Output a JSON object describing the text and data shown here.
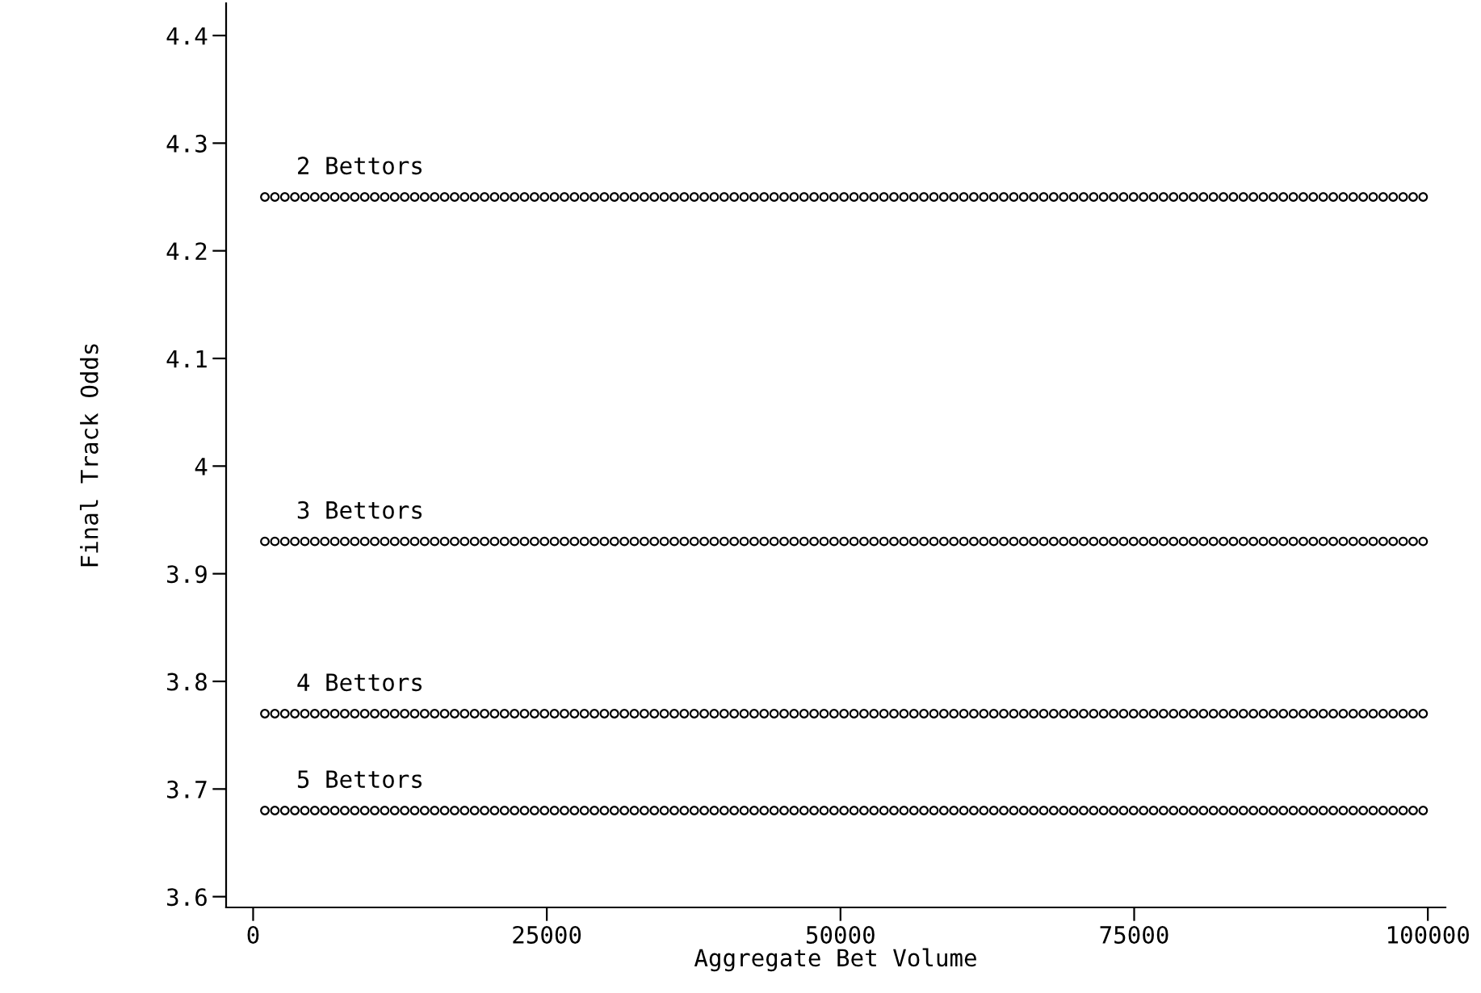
{
  "chart_data": {
    "type": "scatter",
    "xlabel": "Aggregate Bet Volume",
    "ylabel": "Final Track Odds",
    "x": [
      1000,
      1850,
      2700,
      3550,
      4400,
      5250,
      6100,
      6950,
      7800,
      8650,
      9500,
      10350,
      11200,
      12050,
      12900,
      13750,
      14600,
      15450,
      16300,
      17150,
      18000,
      18850,
      19700,
      20550,
      21400,
      22250,
      23100,
      23950,
      24800,
      25650,
      26500,
      27350,
      28200,
      29050,
      29900,
      30750,
      31600,
      32450,
      33300,
      34150,
      35000,
      35850,
      36700,
      37550,
      38400,
      39250,
      40100,
      40950,
      41800,
      42650,
      43500,
      44350,
      45200,
      46050,
      46900,
      47750,
      48600,
      49450,
      50300,
      51150,
      52000,
      52850,
      53700,
      54550,
      55400,
      56250,
      57100,
      57950,
      58800,
      59650,
      60500,
      61350,
      62200,
      63050,
      63900,
      64750,
      65600,
      66450,
      67300,
      68150,
      69000,
      69850,
      70700,
      71550,
      72400,
      73250,
      74100,
      74950,
      75800,
      76650,
      77500,
      78350,
      79200,
      80050,
      80900,
      81750,
      82600,
      83450,
      84300,
      85150,
      86000,
      86850,
      87700,
      88550,
      89400,
      90250,
      91100,
      91950,
      92800,
      93650,
      94500,
      95350,
      96200,
      97050,
      97900,
      98750,
      99600
    ],
    "series": [
      {
        "name": "2 Bettors",
        "color": "#000000",
        "values": [
          4.25,
          4.25,
          4.25,
          4.25,
          4.25,
          4.25,
          4.25,
          4.25,
          4.25,
          4.25,
          4.25,
          4.25,
          4.25,
          4.25,
          4.25,
          4.25,
          4.25,
          4.25,
          4.25,
          4.25,
          4.25,
          4.25,
          4.25,
          4.25,
          4.25,
          4.25,
          4.25,
          4.25,
          4.25,
          4.25,
          4.25,
          4.25,
          4.25,
          4.25,
          4.25,
          4.25,
          4.25,
          4.25,
          4.25,
          4.25,
          4.25,
          4.25,
          4.25,
          4.25,
          4.25,
          4.25,
          4.25,
          4.25,
          4.25,
          4.25,
          4.25,
          4.25,
          4.25,
          4.25,
          4.25,
          4.25,
          4.25,
          4.25,
          4.25,
          4.25,
          4.25,
          4.25,
          4.25,
          4.25,
          4.25,
          4.25,
          4.25,
          4.25,
          4.25,
          4.25,
          4.25,
          4.25,
          4.25,
          4.25,
          4.25,
          4.25,
          4.25,
          4.25,
          4.25,
          4.25,
          4.25,
          4.25,
          4.25,
          4.25,
          4.25,
          4.25,
          4.25,
          4.25,
          4.25,
          4.25,
          4.25,
          4.25,
          4.25,
          4.25,
          4.25,
          4.25,
          4.25,
          4.25,
          4.25,
          4.25,
          4.25,
          4.25,
          4.25,
          4.25,
          4.25,
          4.25,
          4.25,
          4.25,
          4.25,
          4.25,
          4.25,
          4.25,
          4.25,
          4.25,
          4.25,
          4.25,
          4.25
        ]
      },
      {
        "name": "3 Bettors",
        "color": "#000000",
        "values": [
          3.93,
          3.93,
          3.93,
          3.93,
          3.93,
          3.93,
          3.93,
          3.93,
          3.93,
          3.93,
          3.93,
          3.93,
          3.93,
          3.93,
          3.93,
          3.93,
          3.93,
          3.93,
          3.93,
          3.93,
          3.93,
          3.93,
          3.93,
          3.93,
          3.93,
          3.93,
          3.93,
          3.93,
          3.93,
          3.93,
          3.93,
          3.93,
          3.93,
          3.93,
          3.93,
          3.93,
          3.93,
          3.93,
          3.93,
          3.93,
          3.93,
          3.93,
          3.93,
          3.93,
          3.93,
          3.93,
          3.93,
          3.93,
          3.93,
          3.93,
          3.93,
          3.93,
          3.93,
          3.93,
          3.93,
          3.93,
          3.93,
          3.93,
          3.93,
          3.93,
          3.93,
          3.93,
          3.93,
          3.93,
          3.93,
          3.93,
          3.93,
          3.93,
          3.93,
          3.93,
          3.93,
          3.93,
          3.93,
          3.93,
          3.93,
          3.93,
          3.93,
          3.93,
          3.93,
          3.93,
          3.93,
          3.93,
          3.93,
          3.93,
          3.93,
          3.93,
          3.93,
          3.93,
          3.93,
          3.93,
          3.93,
          3.93,
          3.93,
          3.93,
          3.93,
          3.93,
          3.93,
          3.93,
          3.93,
          3.93,
          3.93,
          3.93,
          3.93,
          3.93,
          3.93,
          3.93,
          3.93,
          3.93,
          3.93,
          3.93,
          3.93,
          3.93,
          3.93,
          3.93,
          3.93,
          3.93,
          3.93
        ]
      },
      {
        "name": "4 Bettors",
        "color": "#000000",
        "values": [
          3.77,
          3.77,
          3.77,
          3.77,
          3.77,
          3.77,
          3.77,
          3.77,
          3.77,
          3.77,
          3.77,
          3.77,
          3.77,
          3.77,
          3.77,
          3.77,
          3.77,
          3.77,
          3.77,
          3.77,
          3.77,
          3.77,
          3.77,
          3.77,
          3.77,
          3.77,
          3.77,
          3.77,
          3.77,
          3.77,
          3.77,
          3.77,
          3.77,
          3.77,
          3.77,
          3.77,
          3.77,
          3.77,
          3.77,
          3.77,
          3.77,
          3.77,
          3.77,
          3.77,
          3.77,
          3.77,
          3.77,
          3.77,
          3.77,
          3.77,
          3.77,
          3.77,
          3.77,
          3.77,
          3.77,
          3.77,
          3.77,
          3.77,
          3.77,
          3.77,
          3.77,
          3.77,
          3.77,
          3.77,
          3.77,
          3.77,
          3.77,
          3.77,
          3.77,
          3.77,
          3.77,
          3.77,
          3.77,
          3.77,
          3.77,
          3.77,
          3.77,
          3.77,
          3.77,
          3.77,
          3.77,
          3.77,
          3.77,
          3.77,
          3.77,
          3.77,
          3.77,
          3.77,
          3.77,
          3.77,
          3.77,
          3.77,
          3.77,
          3.77,
          3.77,
          3.77,
          3.77,
          3.77,
          3.77,
          3.77,
          3.77,
          3.77,
          3.77,
          3.77,
          3.77,
          3.77,
          3.77,
          3.77,
          3.77,
          3.77,
          3.77,
          3.77,
          3.77,
          3.77,
          3.77,
          3.77,
          3.77
        ]
      },
      {
        "name": "5 Bettors",
        "color": "#000000",
        "values": [
          3.68,
          3.68,
          3.68,
          3.68,
          3.68,
          3.68,
          3.68,
          3.68,
          3.68,
          3.68,
          3.68,
          3.68,
          3.68,
          3.68,
          3.68,
          3.68,
          3.68,
          3.68,
          3.68,
          3.68,
          3.68,
          3.68,
          3.68,
          3.68,
          3.68,
          3.68,
          3.68,
          3.68,
          3.68,
          3.68,
          3.68,
          3.68,
          3.68,
          3.68,
          3.68,
          3.68,
          3.68,
          3.68,
          3.68,
          3.68,
          3.68,
          3.68,
          3.68,
          3.68,
          3.68,
          3.68,
          3.68,
          3.68,
          3.68,
          3.68,
          3.68,
          3.68,
          3.68,
          3.68,
          3.68,
          3.68,
          3.68,
          3.68,
          3.68,
          3.68,
          3.68,
          3.68,
          3.68,
          3.68,
          3.68,
          3.68,
          3.68,
          3.68,
          3.68,
          3.68,
          3.68,
          3.68,
          3.68,
          3.68,
          3.68,
          3.68,
          3.68,
          3.68,
          3.68,
          3.68,
          3.68,
          3.68,
          3.68,
          3.68,
          3.68,
          3.68,
          3.68,
          3.68,
          3.68,
          3.68,
          3.68,
          3.68,
          3.68,
          3.68,
          3.68,
          3.68,
          3.68,
          3.68,
          3.68,
          3.68,
          3.68,
          3.68,
          3.68,
          3.68,
          3.68,
          3.68,
          3.68,
          3.68,
          3.68,
          3.68,
          3.68,
          3.68,
          3.68,
          3.68,
          3.68,
          3.68,
          3.68
        ]
      }
    ],
    "xlim": [
      -2300,
      101500
    ],
    "xticks": [
      0,
      25000,
      50000,
      75000,
      100000
    ],
    "ylim": [
      3.59,
      4.43
    ],
    "yticks": [
      3.6,
      3.7,
      3.8,
      3.9,
      4,
      4.1,
      4.2,
      4.3,
      4.4
    ],
    "marker": "circle",
    "grid": false,
    "legend": false
  }
}
